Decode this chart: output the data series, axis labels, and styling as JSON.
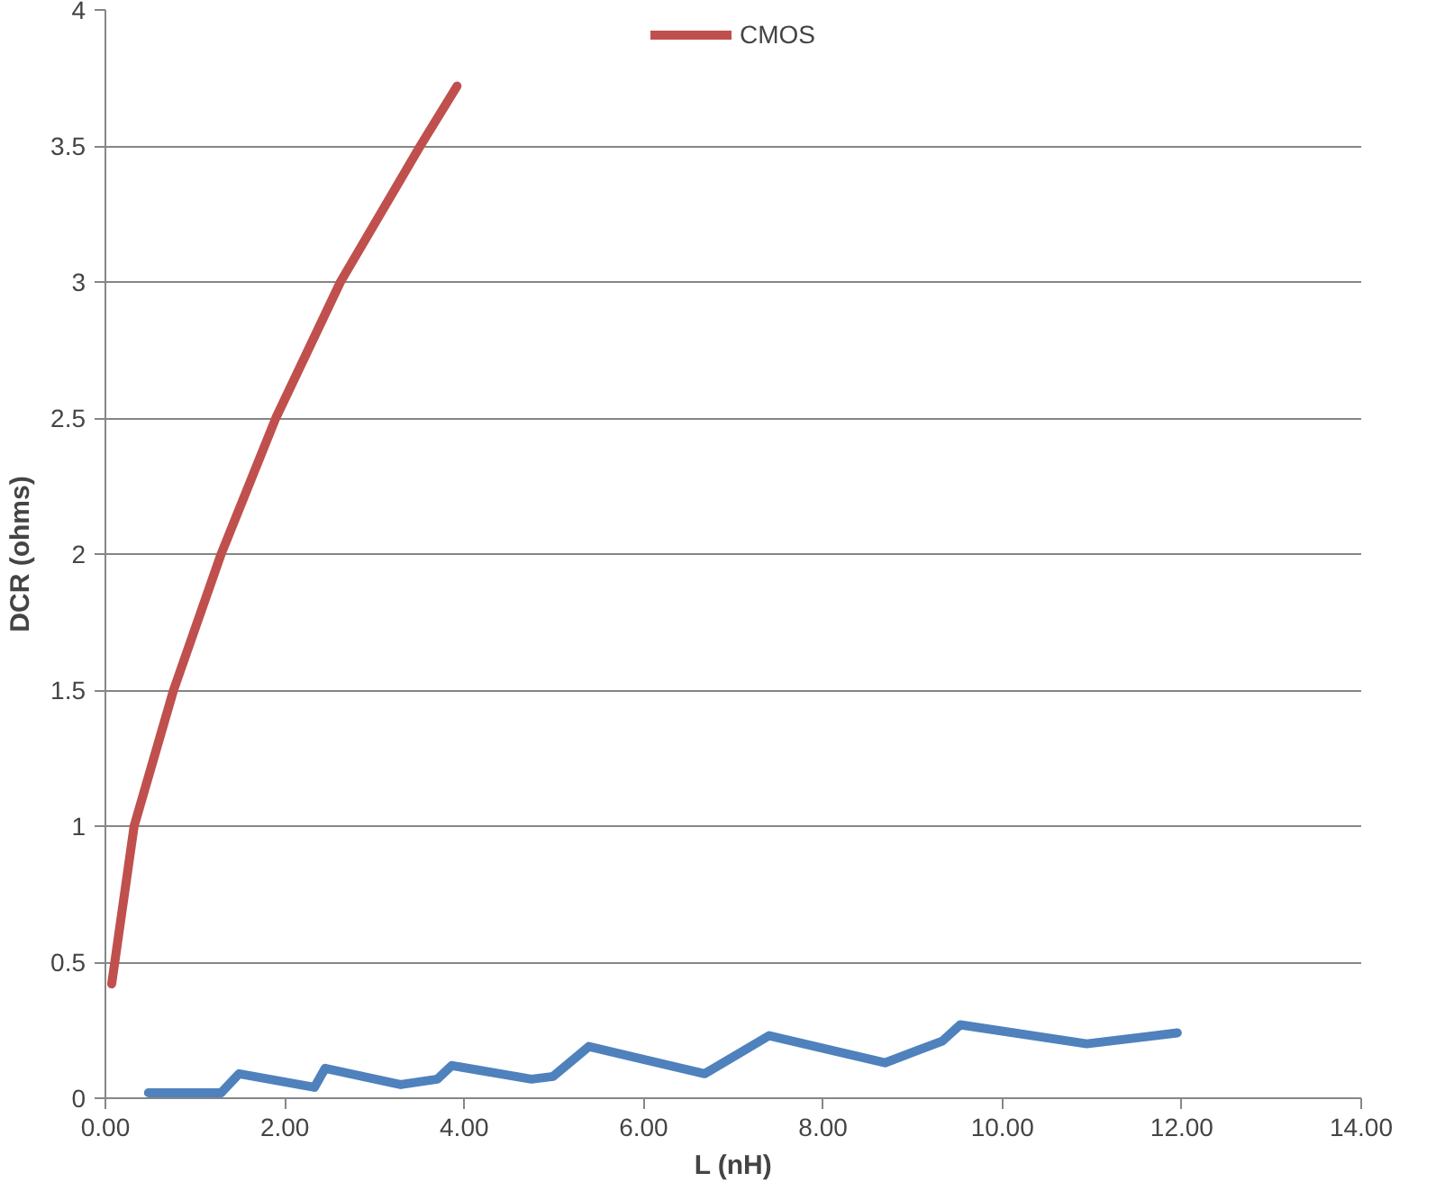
{
  "chart_data": {
    "type": "line",
    "xlabel": "L (nH)",
    "ylabel": "DCR (ohms)",
    "xlim": [
      0,
      14
    ],
    "ylim": [
      0,
      4
    ],
    "xticks": [
      {
        "value": 0,
        "label": "0.00"
      },
      {
        "value": 2,
        "label": "2.00"
      },
      {
        "value": 4,
        "label": "4.00"
      },
      {
        "value": 6,
        "label": "6.00"
      },
      {
        "value": 8,
        "label": "8.00"
      },
      {
        "value": 10,
        "label": "10.00"
      },
      {
        "value": 12,
        "label": "12.00"
      },
      {
        "value": 14,
        "label": "14.00"
      }
    ],
    "yticks": [
      0,
      0.5,
      1,
      1.5,
      2,
      2.5,
      3,
      3.5,
      4
    ],
    "grid": "y",
    "legend": "top",
    "line_style": "solid",
    "marker": "none",
    "series": [
      {
        "name": "CMOS",
        "color": "#c0504d",
        "x": [
          0.07,
          0.32,
          0.76,
          1.29,
          1.9,
          2.62,
          3.51,
          3.92
        ],
        "values": [
          0.42,
          1,
          1.5,
          2,
          2.5,
          3,
          3.5,
          3.72
        ]
      },
      {
        "color": "#4f81bd",
        "x": [
          0.48,
          1.29,
          1.49,
          2.33,
          2.45,
          3.29,
          3.7,
          3.86,
          4.75,
          4.99,
          5.39,
          6.68,
          7.4,
          8.69,
          9.33,
          9.53,
          10.94,
          11.95
        ],
        "values": [
          0.02,
          0.02,
          0.09,
          0.04,
          0.11,
          0.05,
          0.07,
          0.12,
          0.07,
          0.08,
          0.19,
          0.09,
          0.23,
          0.13,
          0.21,
          0.27,
          0.2,
          0.24
        ]
      }
    ]
  }
}
